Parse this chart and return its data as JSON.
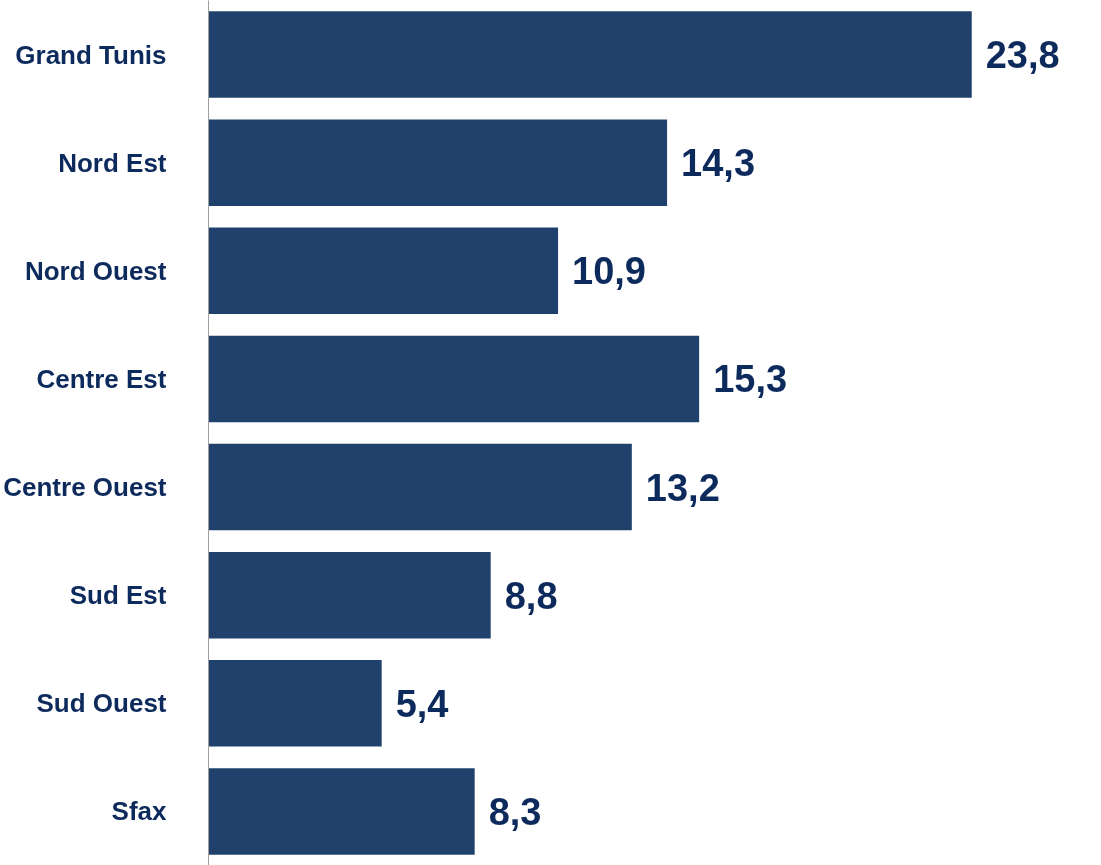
{
  "chart_data": {
    "type": "bar",
    "orientation": "horizontal",
    "categories": [
      "Grand Tunis",
      "Nord Est",
      "Nord Ouest",
      "Centre Est",
      "Centre Ouest",
      "Sud Est",
      "Sud Ouest",
      "Sfax"
    ],
    "values": [
      23.8,
      14.3,
      10.9,
      15.3,
      13.2,
      8.8,
      5.4,
      8.3
    ],
    "value_labels": [
      "23,8",
      "14,3",
      "10,9",
      "15,3",
      "13,2",
      "8,8",
      "5,4",
      "8,3"
    ],
    "color": "#21416d",
    "grid": false
  }
}
